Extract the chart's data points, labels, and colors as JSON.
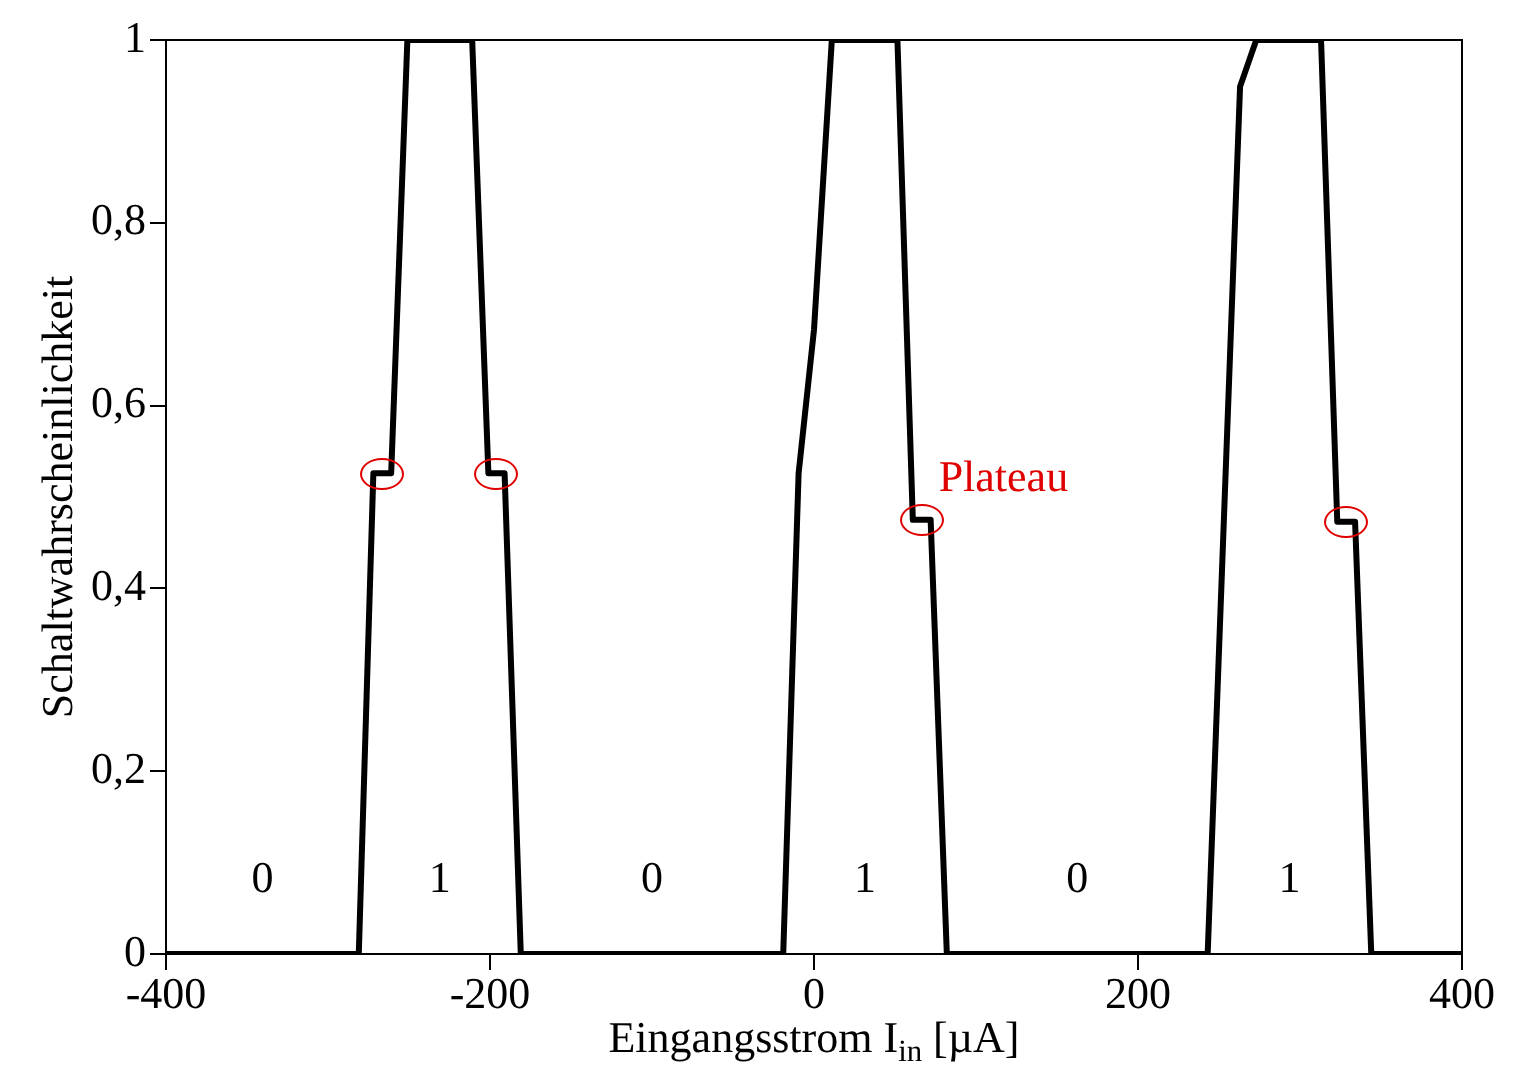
{
  "chart_data": {
    "type": "line",
    "xlabel": "Eingangsstrom I$_{in}$ [µA]",
    "ylabel": "Schaltwahrscheinlichkeit",
    "xlim": [
      -400,
      400
    ],
    "xticks": [
      -400,
      -200,
      0,
      200,
      400
    ],
    "ylim": [
      0,
      1
    ],
    "yticks": [
      0,
      {
        "value": 0.2,
        "label": "0,2"
      },
      {
        "value": 0.4,
        "label": "0,4"
      },
      {
        "value": 0.6,
        "label": "0,6"
      },
      {
        "value": 0.8,
        "label": "0,8"
      },
      1
    ],
    "grid": false,
    "legend": false,
    "marker": "none",
    "line_style": "solid",
    "series": [
      {
        "color": "#000000",
        "x": [
          -400,
          -281,
          -272,
          -261,
          -251,
          -211,
          -201,
          -191,
          -181,
          -19,
          -9.5,
          0,
          11,
          51.5,
          61,
          72,
          82,
          243,
          263,
          273,
          313,
          323,
          334,
          344,
          400
        ],
        "values": [
          0,
          0,
          0.526,
          0.526,
          1,
          1,
          0.526,
          0.526,
          0,
          0,
          0.526,
          0.683,
          1,
          1,
          0.475,
          0.475,
          0,
          0,
          0.949,
          1,
          1,
          0.473,
          0.473,
          0,
          0
        ]
      }
    ],
    "annotations": [
      "0",
      "1",
      "0",
      "1",
      "0",
      "1",
      "Plateau"
    ]
  }
}
